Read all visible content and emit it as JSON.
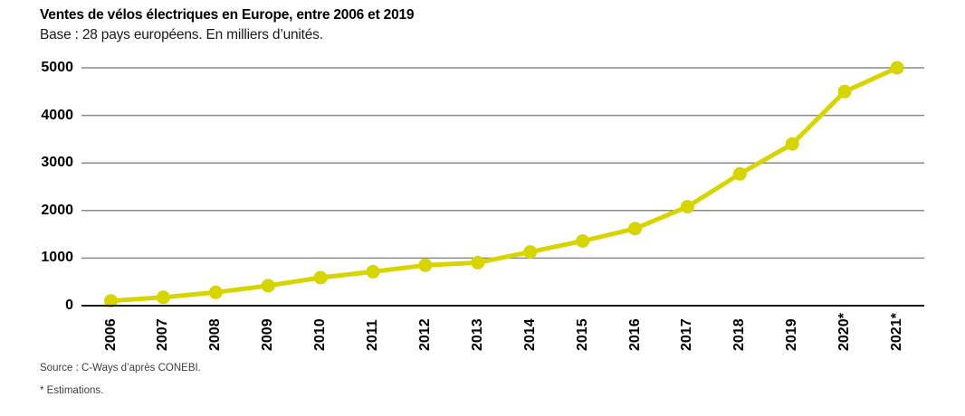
{
  "header": {
    "title": "Ventes de vélos électriques en Europe, entre 2006 et 2019",
    "subtitle": "Base : 28 pays européens. En milliers d’unités."
  },
  "footer": {
    "source": "Source : C-Ways d’après CONEBI.",
    "note": "* Estimations."
  },
  "chart_data": {
    "type": "line",
    "title": "Ventes de vélos électriques en Europe, entre 2006 et 2019",
    "subtitle": "Base : 28 pays européens. En milliers d’unités.",
    "categories": [
      "2006",
      "2007",
      "2008",
      "2009",
      "2010",
      "2011",
      "2012",
      "2013",
      "2014",
      "2015",
      "2016",
      "2017",
      "2018",
      "2019",
      "2020*",
      "2021*"
    ],
    "series": [
      {
        "name": "Ventes de vélos électriques (milliers d’unités)",
        "values": [
          100,
          175,
          280,
          420,
          590,
          715,
          850,
          905,
          1130,
          1360,
          1620,
          2080,
          2770,
          3400,
          4500,
          5000
        ]
      }
    ],
    "xlabel": "",
    "ylabel": "",
    "ylim": [
      0,
      5000
    ],
    "yticks": [
      0,
      1000,
      2000,
      3000,
      4000,
      5000
    ],
    "grid": true,
    "legend": "none",
    "marker": "circle",
    "line_color": "#d7d500"
  },
  "colors": {
    "line": "#d7d500",
    "gridline": "#8a8a8a",
    "axis": "#1a1a1a",
    "text": "#000000",
    "muted_text": "#3d3d3d",
    "background": "#ffffff"
  }
}
